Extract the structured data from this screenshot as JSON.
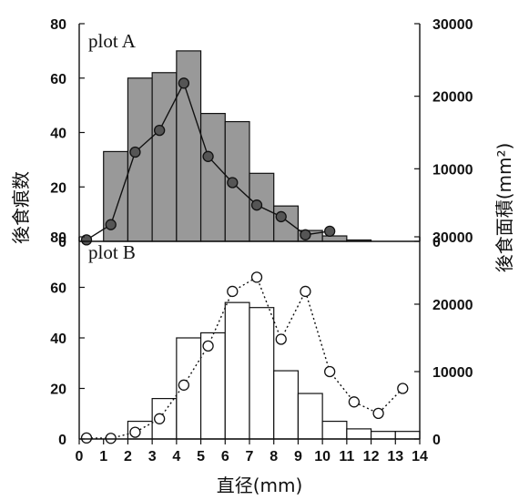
{
  "x_axis": {
    "label": "直径(mm)",
    "ticks": [
      0,
      1,
      2,
      3,
      4,
      5,
      6,
      7,
      8,
      9,
      10,
      11,
      12,
      13,
      14
    ],
    "range": [
      0,
      14
    ]
  },
  "y_left": {
    "label": "後食痕数",
    "ticks": [
      0,
      20,
      40,
      60,
      80
    ],
    "range": [
      0,
      80
    ]
  },
  "y_right": {
    "label": "後食面積(mm²)",
    "ticks": [
      0,
      10000,
      20000,
      30000
    ],
    "range": [
      0,
      30000
    ]
  },
  "chart_data": [
    {
      "type": "bar",
      "panel_label": "plot A",
      "bar_color": "#999999",
      "bins": [
        [
          1,
          2
        ],
        [
          2,
          3
        ],
        [
          3,
          4
        ],
        [
          4,
          5
        ],
        [
          5,
          6
        ],
        [
          6,
          7
        ],
        [
          7,
          8
        ],
        [
          8,
          9
        ],
        [
          9,
          10
        ],
        [
          10,
          11
        ],
        [
          11,
          12
        ],
        [
          12,
          13
        ],
        [
          13,
          14
        ]
      ],
      "counts": [
        33,
        60,
        62,
        70,
        47,
        44,
        25,
        13,
        4,
        2,
        0.5,
        0,
        0
      ],
      "area_series": {
        "marker": "filled-circle",
        "line_style": "solid",
        "x": [
          0.3,
          1.3,
          2.3,
          3.3,
          4.3,
          5.3,
          6.3,
          7.3,
          8.3,
          9.3,
          10.3
        ],
        "y": [
          200,
          2300,
          12300,
          15300,
          21800,
          11700,
          8100,
          5000,
          3400,
          900,
          1400
        ]
      }
    },
    {
      "type": "bar",
      "panel_label": "plot B",
      "bar_color": "#ffffff",
      "bins": [
        [
          1,
          2
        ],
        [
          2,
          3
        ],
        [
          3,
          4
        ],
        [
          4,
          5
        ],
        [
          5,
          6
        ],
        [
          6,
          7
        ],
        [
          7,
          8
        ],
        [
          8,
          9
        ],
        [
          9,
          10
        ],
        [
          10,
          11
        ],
        [
          11,
          12
        ],
        [
          12,
          13
        ],
        [
          13,
          14
        ]
      ],
      "counts": [
        0,
        7,
        16,
        40,
        42,
        54,
        52,
        27,
        18,
        7,
        4,
        3,
        3
      ],
      "area_series": {
        "marker": "open-circle",
        "line_style": "dotted",
        "x": [
          0.3,
          1.3,
          2.3,
          3.3,
          4.3,
          5.3,
          6.3,
          7.3,
          8.3,
          9.3,
          10.3,
          11.3,
          12.3,
          13.3
        ],
        "y": [
          150,
          100,
          1000,
          3000,
          8000,
          13800,
          21900,
          24000,
          14800,
          21900,
          10000,
          5500,
          3800,
          7500
        ]
      }
    }
  ]
}
